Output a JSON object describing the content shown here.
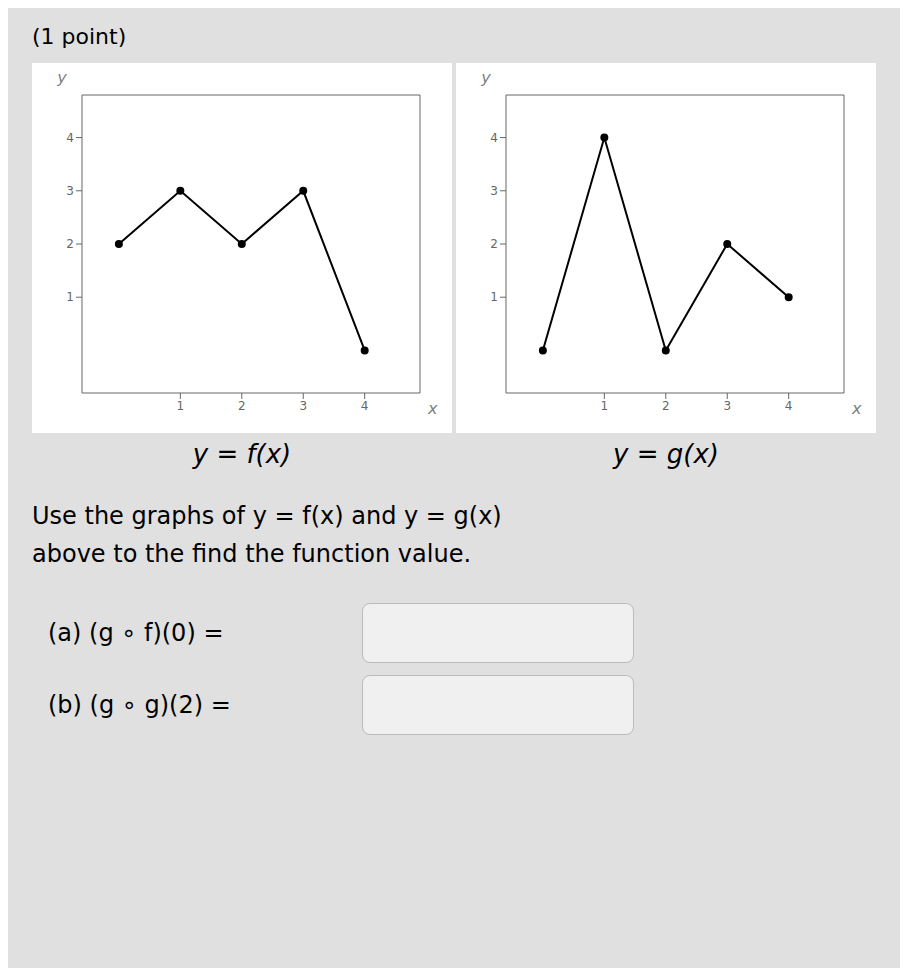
{
  "title": "(1 point)",
  "chart_data": [
    {
      "type": "line",
      "title": "y = f(x)",
      "x_label": "x",
      "y_label": "y",
      "x": [
        0,
        1,
        2,
        3,
        4
      ],
      "values": [
        2,
        3,
        2,
        3,
        0
      ],
      "xlim": [
        -0.6,
        4.9
      ],
      "ylim": [
        -0.8,
        4.8
      ],
      "xticks": [
        1,
        2,
        3,
        4
      ],
      "yticks": [
        1,
        2,
        3,
        4
      ],
      "color": "#000000",
      "marker": "circle",
      "grid": false
    },
    {
      "type": "line",
      "title": "y = g(x)",
      "x_label": "x",
      "y_label": "y",
      "x": [
        0,
        1,
        2,
        3,
        4
      ],
      "values": [
        0,
        4,
        0,
        2,
        1
      ],
      "xlim": [
        -0.6,
        4.9
      ],
      "ylim": [
        -0.8,
        4.8
      ],
      "xticks": [
        1,
        2,
        3,
        4
      ],
      "yticks": [
        1,
        2,
        3,
        4
      ],
      "color": "#000000",
      "marker": "circle",
      "grid": false
    }
  ],
  "annotations": [
    "Use the graphs of y = f(x) and y = g(x)",
    "above to the find the function value.",
    "(a) (g ∘ f)(0) =",
    "(b) (g ∘ g)(2) ="
  ]
}
